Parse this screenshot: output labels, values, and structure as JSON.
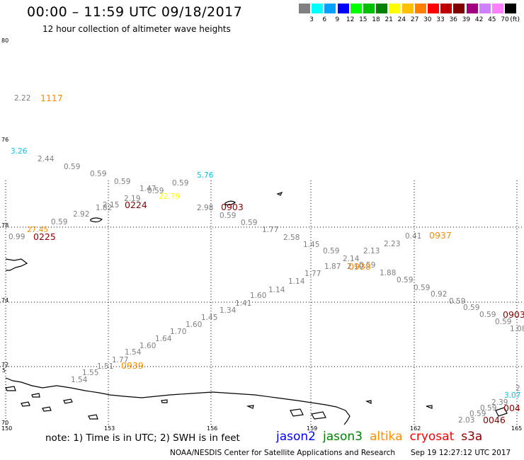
{
  "title": "00:00 – 11:59 UTC 09/18/2017",
  "subtitle": "12 hour collection of altimeter wave heights",
  "legend": {
    "unit": "(ft)",
    "colors": [
      "#808080",
      "#00ffff",
      "#00a0ff",
      "#0000ff",
      "#00ff00",
      "#00c000",
      "#008000",
      "#ffff00",
      "#ffc000",
      "#ff8000",
      "#ff0000",
      "#c00000",
      "#800000",
      "#a00080",
      "#d080ff",
      "#ff80ff",
      "#000000"
    ],
    "labels": [
      "3",
      "6",
      "9",
      "12",
      "15",
      "18",
      "21",
      "24",
      "27",
      "30",
      "33",
      "36",
      "39",
      "42",
      "45",
      "70"
    ]
  },
  "axes": {
    "lat_labels": [
      "80",
      "76",
      "78",
      "74",
      "72",
      "70"
    ],
    "lat_extra": "5",
    "lon_labels": [
      "150",
      "153",
      "156",
      "159",
      "162",
      "165"
    ]
  },
  "wave_labels": [
    {
      "text": "2.22",
      "color": "#808080"
    },
    {
      "text": "3.26",
      "color": "#00c8e6"
    },
    {
      "text": "2.44",
      "color": "#808080"
    },
    {
      "text": "0.59",
      "color": "#808080"
    },
    {
      "text": "0.59",
      "color": "#808080"
    },
    {
      "text": "0.59",
      "color": "#808080"
    },
    {
      "text": "1.47",
      "color": "#808080"
    },
    {
      "text": "0.59",
      "color": "#808080"
    },
    {
      "text": "0.59",
      "color": "#808080"
    },
    {
      "text": "5.76",
      "color": "#00c8e6"
    },
    {
      "text": "2.19",
      "color": "#808080"
    },
    {
      "text": "22.79",
      "color": "#ffff00"
    },
    {
      "text": "2.15",
      "color": "#808080"
    },
    {
      "text": "1.82",
      "color": "#808080"
    },
    {
      "text": "2.92",
      "color": "#808080"
    },
    {
      "text": "0.59",
      "color": "#808080"
    },
    {
      "text": "27.45",
      "color": "#ff8c00"
    },
    {
      "text": "0.99",
      "color": "#808080"
    },
    {
      "text": "2.98",
      "color": "#808080"
    },
    {
      "text": "0.59",
      "color": "#808080"
    },
    {
      "text": "0.59",
      "color": "#808080"
    },
    {
      "text": "1.77",
      "color": "#808080"
    },
    {
      "text": "2.58",
      "color": "#808080"
    },
    {
      "text": "1.45",
      "color": "#808080"
    },
    {
      "text": "0.59",
      "color": "#808080"
    },
    {
      "text": "2.14",
      "color": "#808080"
    },
    {
      "text": "2.13",
      "color": "#808080"
    },
    {
      "text": "2.23",
      "color": "#808080"
    },
    {
      "text": "0.41",
      "color": "#808080"
    },
    {
      "text": "1.87",
      "color": "#808080"
    },
    {
      "text": "2.10",
      "color": "#808080"
    },
    {
      "text": "0.59",
      "color": "#808080"
    },
    {
      "text": "1.88",
      "color": "#808080"
    },
    {
      "text": "0.59",
      "color": "#808080"
    },
    {
      "text": "0.59",
      "color": "#808080"
    },
    {
      "text": "0.92",
      "color": "#808080"
    },
    {
      "text": "0.59",
      "color": "#808080"
    },
    {
      "text": "0.59",
      "color": "#808080"
    },
    {
      "text": "0.59",
      "color": "#808080"
    },
    {
      "text": "0.59",
      "color": "#808080"
    },
    {
      "text": "1.08",
      "color": "#808080"
    },
    {
      "text": "1.77",
      "color": "#808080"
    },
    {
      "text": "1.14",
      "color": "#808080"
    },
    {
      "text": "1.14",
      "color": "#808080"
    },
    {
      "text": "1.60",
      "color": "#808080"
    },
    {
      "text": "1.41",
      "color": "#808080"
    },
    {
      "text": "1.34",
      "color": "#808080"
    },
    {
      "text": "1.45",
      "color": "#808080"
    },
    {
      "text": "1.60",
      "color": "#808080"
    },
    {
      "text": "1.70",
      "color": "#808080"
    },
    {
      "text": "1.64",
      "color": "#808080"
    },
    {
      "text": "1.60",
      "color": "#808080"
    },
    {
      "text": "1.54",
      "color": "#808080"
    },
    {
      "text": "1.77",
      "color": "#808080"
    },
    {
      "text": "1.51",
      "color": "#808080"
    },
    {
      "text": "1.55",
      "color": "#808080"
    },
    {
      "text": "1.54",
      "color": "#808080"
    },
    {
      "text": "3.07",
      "color": "#00c8e6"
    },
    {
      "text": "2",
      "color": "#808080"
    },
    {
      "text": "2.39",
      "color": "#808080"
    },
    {
      "text": "0.59",
      "color": "#808080"
    },
    {
      "text": "0.59",
      "color": "#808080"
    },
    {
      "text": "2.03",
      "color": "#808080"
    }
  ],
  "time_labels": [
    {
      "text": "1117",
      "color": "#ff8c00"
    },
    {
      "text": "0224",
      "color": "#8b0000"
    },
    {
      "text": "0903",
      "color": "#8b0000"
    },
    {
      "text": "0225",
      "color": "#8b0000"
    },
    {
      "text": "0937",
      "color": "#ff8c00"
    },
    {
      "text": "0938",
      "color": "#ff8c00"
    },
    {
      "text": "0903",
      "color": "#8b0000"
    },
    {
      "text": "0939",
      "color": "#ff8c00"
    },
    {
      "text": "004",
      "color": "#8b0000"
    },
    {
      "text": "0046",
      "color": "#8b0000"
    }
  ],
  "note": "note:  1) Time is in UTC; 2) SWH is in feet",
  "satellites": [
    {
      "name": "jason2",
      "color": "#0000ff"
    },
    {
      "name": "jason3",
      "color": "#008000"
    },
    {
      "name": "altika",
      "color": "#ff8c00"
    },
    {
      "name": "cryosat",
      "color": "#ff0000"
    },
    {
      "name": "s3a",
      "color": "#8b0000"
    }
  ],
  "credit": "NOAA/NESDIS Center for Satellite Applications and Research",
  "timestamp": "Sep 19 12:27:12 UTC 2017"
}
